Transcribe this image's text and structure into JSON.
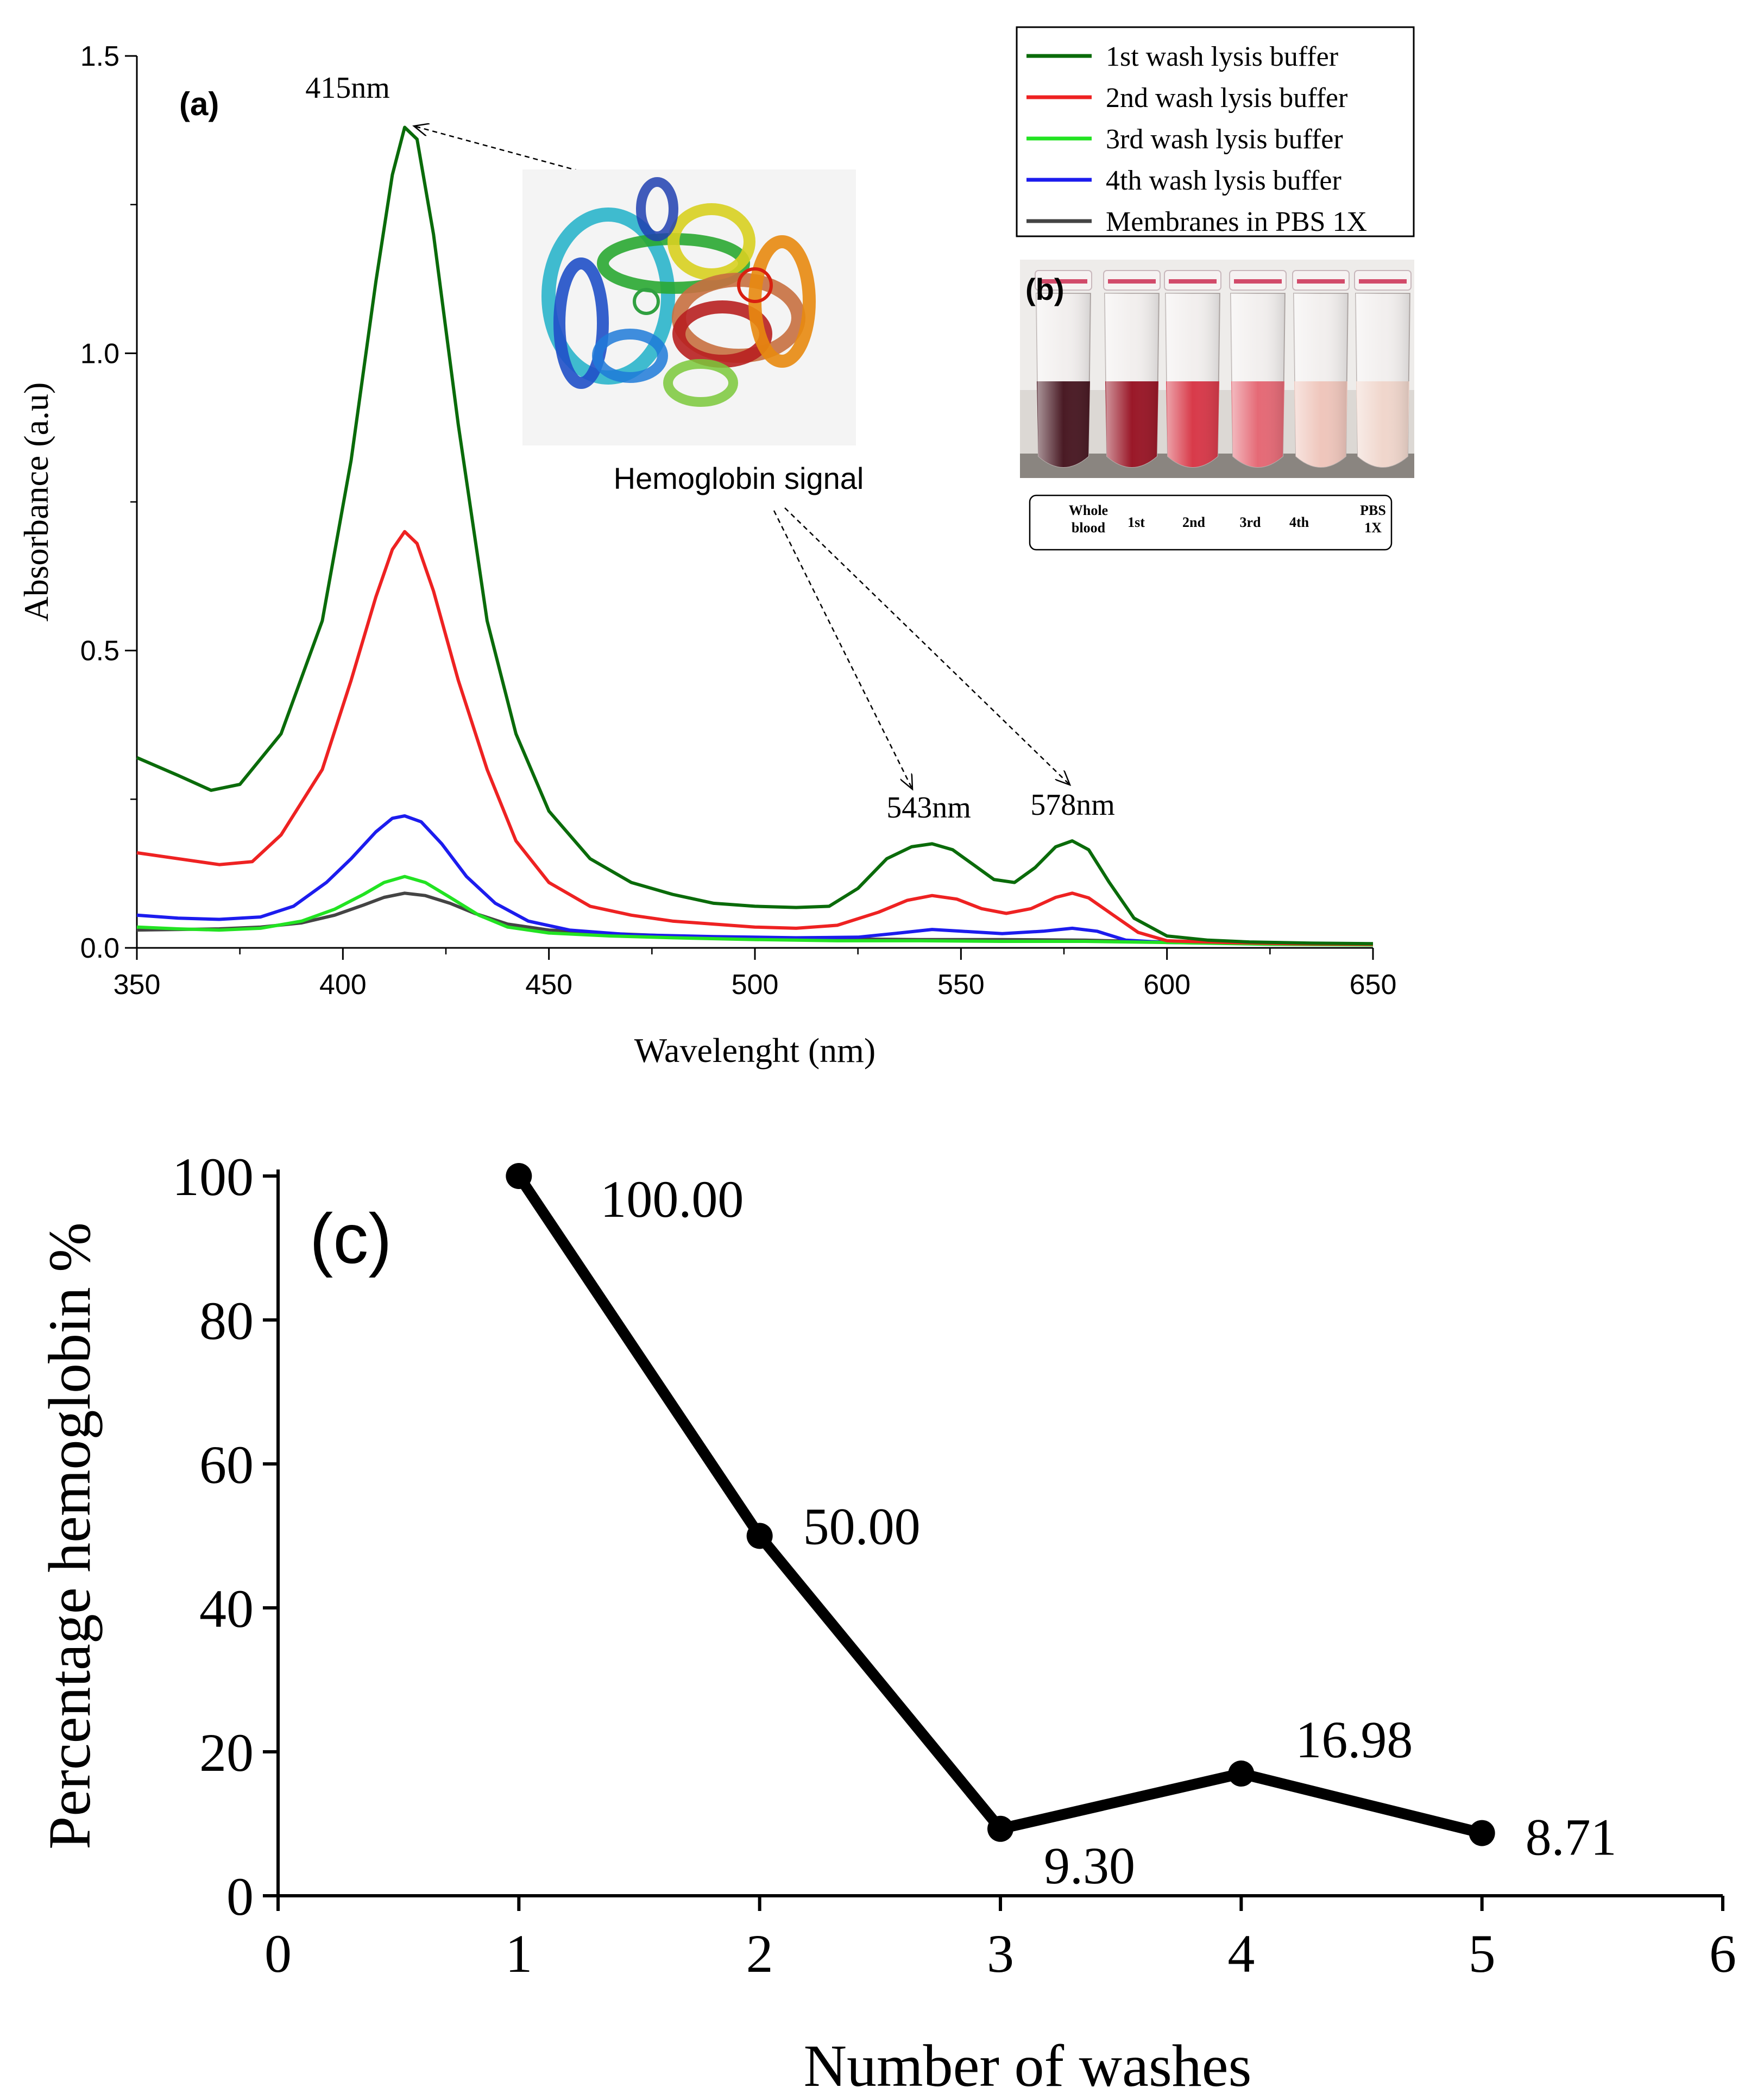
{
  "chart_data": [
    {
      "type": "line",
      "panel_label": "(a)",
      "xlabel": "Wavelenght (nm)",
      "ylabel": "Absorbance (a.u)",
      "xlim": [
        350,
        650
      ],
      "ylim": [
        0,
        1.5
      ],
      "xticks": [
        "350",
        "400",
        "450",
        "500",
        "550",
        "600",
        "650"
      ],
      "yticks": [
        "0.0",
        "0.5",
        "1.0",
        "1.5"
      ],
      "grid": false,
      "legend_position": "top-right",
      "annotations": {
        "peak_415": "415nm",
        "peak_543": "543nm",
        "peak_578": "578nm",
        "hemoglobin_signal": "Hemoglobin signal"
      },
      "series": [
        {
          "name": "1st  wash lysis buffer",
          "color": "#0a6b0a",
          "points": [
            [
              350,
              0.32
            ],
            [
              360,
              0.29
            ],
            [
              368,
              0.265
            ],
            [
              375,
              0.275
            ],
            [
              385,
              0.36
            ],
            [
              395,
              0.55
            ],
            [
              402,
              0.82
            ],
            [
              408,
              1.12
            ],
            [
              412,
              1.3
            ],
            [
              415,
              1.38
            ],
            [
              418,
              1.36
            ],
            [
              422,
              1.2
            ],
            [
              428,
              0.88
            ],
            [
              435,
              0.55
            ],
            [
              442,
              0.36
            ],
            [
              450,
              0.23
            ],
            [
              460,
              0.15
            ],
            [
              470,
              0.11
            ],
            [
              480,
              0.09
            ],
            [
              490,
              0.075
            ],
            [
              500,
              0.07
            ],
            [
              510,
              0.068
            ],
            [
              518,
              0.07
            ],
            [
              525,
              0.1
            ],
            [
              532,
              0.15
            ],
            [
              538,
              0.17
            ],
            [
              543,
              0.175
            ],
            [
              548,
              0.165
            ],
            [
              553,
              0.14
            ],
            [
              558,
              0.115
            ],
            [
              563,
              0.11
            ],
            [
              568,
              0.135
            ],
            [
              573,
              0.17
            ],
            [
              577,
              0.18
            ],
            [
              581,
              0.165
            ],
            [
              586,
              0.11
            ],
            [
              592,
              0.05
            ],
            [
              600,
              0.02
            ],
            [
              610,
              0.013
            ],
            [
              620,
              0.01
            ],
            [
              635,
              0.008
            ],
            [
              650,
              0.007
            ]
          ]
        },
        {
          "name": "2nd wash lysis buffer",
          "color": "#ee2222",
          "points": [
            [
              350,
              0.16
            ],
            [
              360,
              0.15
            ],
            [
              370,
              0.14
            ],
            [
              378,
              0.145
            ],
            [
              385,
              0.19
            ],
            [
              395,
              0.3
            ],
            [
              402,
              0.45
            ],
            [
              408,
              0.59
            ],
            [
              412,
              0.67
            ],
            [
              415,
              0.7
            ],
            [
              418,
              0.68
            ],
            [
              422,
              0.6
            ],
            [
              428,
              0.45
            ],
            [
              435,
              0.3
            ],
            [
              442,
              0.18
            ],
            [
              450,
              0.11
            ],
            [
              460,
              0.07
            ],
            [
              470,
              0.055
            ],
            [
              480,
              0.045
            ],
            [
              490,
              0.04
            ],
            [
              500,
              0.035
            ],
            [
              510,
              0.033
            ],
            [
              520,
              0.038
            ],
            [
              530,
              0.06
            ],
            [
              537,
              0.08
            ],
            [
              543,
              0.088
            ],
            [
              549,
              0.082
            ],
            [
              555,
              0.066
            ],
            [
              561,
              0.058
            ],
            [
              567,
              0.066
            ],
            [
              573,
              0.085
            ],
            [
              577,
              0.092
            ],
            [
              581,
              0.084
            ],
            [
              587,
              0.055
            ],
            [
              593,
              0.026
            ],
            [
              600,
              0.012
            ],
            [
              615,
              0.009
            ],
            [
              630,
              0.007
            ],
            [
              650,
              0.006
            ]
          ]
        },
        {
          "name": "3rd  wash lysis buffer",
          "color": "#22e322",
          "points": [
            [
              350,
              0.035
            ],
            [
              360,
              0.032
            ],
            [
              370,
              0.03
            ],
            [
              380,
              0.033
            ],
            [
              390,
              0.045
            ],
            [
              398,
              0.065
            ],
            [
              405,
              0.09
            ],
            [
              410,
              0.11
            ],
            [
              415,
              0.12
            ],
            [
              420,
              0.11
            ],
            [
              426,
              0.085
            ],
            [
              433,
              0.055
            ],
            [
              440,
              0.035
            ],
            [
              450,
              0.025
            ],
            [
              465,
              0.02
            ],
            [
              480,
              0.017
            ],
            [
              500,
              0.014
            ],
            [
              520,
              0.012
            ],
            [
              540,
              0.012
            ],
            [
              560,
              0.011
            ],
            [
              580,
              0.011
            ],
            [
              600,
              0.009
            ],
            [
              625,
              0.006
            ],
            [
              650,
              0.005
            ]
          ]
        },
        {
          "name": "4th  wash lysis buffer",
          "color": "#1c1cee",
          "points": [
            [
              350,
              0.055
            ],
            [
              360,
              0.05
            ],
            [
              370,
              0.048
            ],
            [
              380,
              0.052
            ],
            [
              388,
              0.07
            ],
            [
              396,
              0.11
            ],
            [
              402,
              0.15
            ],
            [
              408,
              0.195
            ],
            [
              412,
              0.218
            ],
            [
              415,
              0.222
            ],
            [
              419,
              0.212
            ],
            [
              424,
              0.175
            ],
            [
              430,
              0.12
            ],
            [
              437,
              0.075
            ],
            [
              445,
              0.045
            ],
            [
              455,
              0.03
            ],
            [
              470,
              0.022
            ],
            [
              490,
              0.019
            ],
            [
              510,
              0.017
            ],
            [
              525,
              0.018
            ],
            [
              535,
              0.025
            ],
            [
              543,
              0.031
            ],
            [
              550,
              0.028
            ],
            [
              560,
              0.024
            ],
            [
              570,
              0.028
            ],
            [
              577,
              0.033
            ],
            [
              583,
              0.028
            ],
            [
              590,
              0.013
            ],
            [
              600,
              0.009
            ],
            [
              625,
              0.007
            ],
            [
              650,
              0.006
            ]
          ]
        },
        {
          "name": "Membranes in PBS 1X",
          "color": "#444444",
          "points": [
            [
              350,
              0.03
            ],
            [
              360,
              0.031
            ],
            [
              370,
              0.032
            ],
            [
              380,
              0.035
            ],
            [
              390,
              0.042
            ],
            [
              398,
              0.055
            ],
            [
              405,
              0.072
            ],
            [
              410,
              0.085
            ],
            [
              415,
              0.092
            ],
            [
              420,
              0.088
            ],
            [
              426,
              0.075
            ],
            [
              432,
              0.058
            ],
            [
              440,
              0.04
            ],
            [
              450,
              0.03
            ],
            [
              465,
              0.024
            ],
            [
              480,
              0.02
            ],
            [
              500,
              0.016
            ],
            [
              520,
              0.015
            ],
            [
              540,
              0.014
            ],
            [
              560,
              0.014
            ],
            [
              580,
              0.013
            ],
            [
              600,
              0.01
            ],
            [
              625,
              0.008
            ],
            [
              650,
              0.006
            ]
          ]
        }
      ]
    },
    {
      "type": "line",
      "panel_label": "(c)",
      "xlabel": "Number of washes",
      "ylabel": "Percentage hemoglobin %",
      "xlim": [
        0,
        6
      ],
      "ylim": [
        0,
        100
      ],
      "xticks": [
        "0",
        "1",
        "2",
        "3",
        "4",
        "5",
        "6"
      ],
      "yticks": [
        "0",
        "20",
        "40",
        "60",
        "80",
        "100"
      ],
      "grid": false,
      "x": [
        1,
        2,
        3,
        4,
        5
      ],
      "values": [
        100.0,
        50.0,
        9.3,
        16.98,
        8.71
      ],
      "data_labels": [
        "100.00",
        "50.00",
        "9.30",
        "16.98",
        "8.71"
      ]
    }
  ],
  "inset_b": {
    "panel_label": "(b)",
    "tube_labels": [
      "Whole blood",
      "1st",
      "2nd",
      "3rd",
      "4th",
      "PBS 1X"
    ],
    "tube_colors": [
      "#4a1a24",
      "#9a1828",
      "#d83a4a",
      "#e56a76",
      "#efc6bc",
      "#f0d6cc"
    ]
  },
  "inset_protein": {
    "icon": "hemoglobin-structure-icon"
  }
}
